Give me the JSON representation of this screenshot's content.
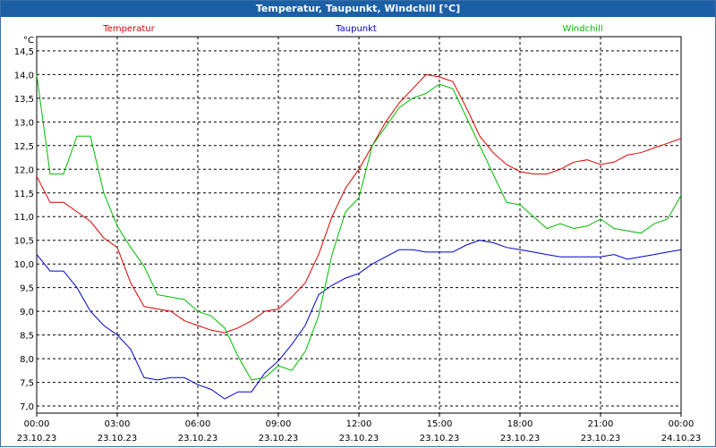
{
  "window": {
    "title": "Temperatur, Taupunkt, Windchill [°C]"
  },
  "chart_data": {
    "type": "line",
    "title": "Temperatur, Taupunkt, Windchill [°C]",
    "ylabel": "°C",
    "ylim": [
      6.85,
      14.8
    ],
    "yticks": [
      "14,5",
      "14,0",
      "13,5",
      "13,0",
      "12,5",
      "12,0",
      "11,5",
      "11,0",
      "10,5",
      "10,0",
      "9,5",
      "9,0",
      "8,5",
      "8,0",
      "7,5",
      "7,0"
    ],
    "xlim": [
      0,
      24
    ],
    "xticks": [
      {
        "time": "00:00",
        "date": "23.10.23"
      },
      {
        "time": "03:00",
        "date": "23.10.23"
      },
      {
        "time": "06:00",
        "date": "23.10.23"
      },
      {
        "time": "09:00",
        "date": "23.10.23"
      },
      {
        "time": "12:00",
        "date": "23.10.23"
      },
      {
        "time": "15:00",
        "date": "23.10.23"
      },
      {
        "time": "18:00",
        "date": "23.10.23"
      },
      {
        "time": "21:00",
        "date": "23.10.23"
      },
      {
        "time": "00:00",
        "date": "24.10.23"
      }
    ],
    "grid": true,
    "legend": "top",
    "x": [
      0,
      0.5,
      1,
      1.5,
      2,
      2.5,
      3,
      3.5,
      4,
      4.5,
      5,
      5.5,
      6,
      6.5,
      7,
      7.5,
      8,
      8.5,
      9,
      9.5,
      10,
      10.5,
      11,
      11.5,
      12,
      12.5,
      13,
      13.5,
      14,
      14.5,
      15,
      15.5,
      16,
      16.5,
      17,
      17.5,
      18,
      18.5,
      19,
      19.5,
      20,
      20.5,
      21,
      21.5,
      22,
      22.5,
      23,
      23.5,
      24
    ],
    "series": [
      {
        "name": "Temperatur",
        "color": "#e00000",
        "values": [
          11.85,
          11.3,
          11.3,
          11.1,
          10.9,
          10.55,
          10.35,
          9.6,
          9.1,
          9.05,
          9.0,
          8.8,
          8.7,
          8.6,
          8.55,
          8.65,
          8.8,
          9.0,
          9.05,
          9.3,
          9.6,
          10.2,
          11.0,
          11.6,
          12.0,
          12.5,
          13.0,
          13.4,
          13.7,
          14.0,
          13.95,
          13.85,
          13.3,
          12.7,
          12.35,
          12.1,
          11.95,
          11.9,
          11.9,
          12.0,
          12.15,
          12.2,
          12.1,
          12.15,
          12.3,
          12.35,
          12.45,
          12.55,
          12.65
        ]
      },
      {
        "name": "Taupunkt",
        "color": "#0000cc",
        "values": [
          10.2,
          9.85,
          9.85,
          9.5,
          9.0,
          8.7,
          8.5,
          8.2,
          7.6,
          7.55,
          7.6,
          7.6,
          7.45,
          7.35,
          7.15,
          7.3,
          7.3,
          7.7,
          7.95,
          8.3,
          8.7,
          9.35,
          9.55,
          9.7,
          9.8,
          10.0,
          10.15,
          10.3,
          10.3,
          10.25,
          10.25,
          10.25,
          10.4,
          10.5,
          10.45,
          10.35,
          10.3,
          10.25,
          10.2,
          10.15,
          10.15,
          10.15,
          10.15,
          10.2,
          10.1,
          10.15,
          10.2,
          10.25,
          10.3
        ]
      },
      {
        "name": "Windchill",
        "color": "#00bb00",
        "values": [
          14.0,
          11.9,
          11.9,
          12.7,
          12.7,
          11.5,
          10.8,
          10.35,
          9.95,
          9.35,
          9.3,
          9.25,
          9.0,
          8.9,
          8.65,
          8.05,
          7.55,
          7.6,
          7.85,
          7.75,
          8.15,
          8.9,
          10.2,
          11.1,
          11.4,
          12.5,
          12.9,
          13.3,
          13.5,
          13.6,
          13.8,
          13.7,
          13.1,
          12.5,
          11.9,
          11.3,
          11.25,
          11.0,
          10.75,
          10.85,
          10.75,
          10.8,
          10.95,
          10.75,
          10.7,
          10.65,
          10.85,
          10.95,
          11.45
        ]
      }
    ]
  }
}
